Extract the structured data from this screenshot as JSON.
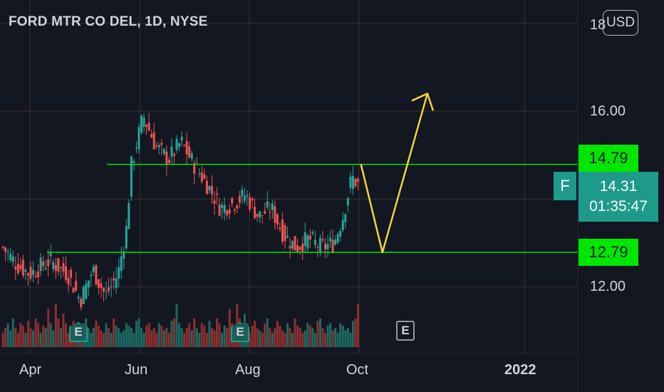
{
  "header": {
    "symbol_title": "FORD MTR CO DEL, 1D, NYSE",
    "currency": "USD"
  },
  "price_axis": {
    "ticks": [
      {
        "label": "18",
        "value": 18.0
      },
      {
        "label": "16.00",
        "value": 16.0
      },
      {
        "label": "12.00",
        "value": 12.0
      }
    ]
  },
  "time_axis": {
    "ticks": [
      {
        "label": "Apr",
        "date": "2021-04-01"
      },
      {
        "label": "Jun",
        "date": "2021-06-01"
      },
      {
        "label": "Aug",
        "date": "2021-08-01"
      },
      {
        "label": "Oct",
        "date": "2021-10-01"
      },
      {
        "label": "2022",
        "date": "2022-01-01"
      }
    ]
  },
  "price_tags": {
    "resistance": "14.79",
    "support": "12.79"
  },
  "last_price": {
    "ticker": "F",
    "price": "14.31",
    "countdown": "01:35:47"
  },
  "events": {
    "earnings_label": "E",
    "upcoming_label": "E"
  },
  "colors": {
    "up": "#26a69a",
    "down": "#ef5350",
    "level": "#00e600",
    "projection": "#f2d23c",
    "grid": "#3b2f2a",
    "background": "#131722"
  },
  "chart_data": {
    "type": "candlestick",
    "title": "FORD MTR CO DEL, 1D, NYSE",
    "ylim": [
      11.5,
      18.3
    ],
    "price_scale": "linear",
    "grid": true,
    "horizontal_levels": [
      14.79,
      12.79
    ],
    "last_price": 14.31,
    "close_path": [
      {
        "date": "2021-03-17",
        "close": 12.9
      },
      {
        "date": "2021-03-25",
        "close": 12.5
      },
      {
        "date": "2021-04-01",
        "close": 12.3
      },
      {
        "date": "2021-04-12",
        "close": 12.6
      },
      {
        "date": "2021-04-22",
        "close": 12.3
      },
      {
        "date": "2021-04-29",
        "close": 11.7
      },
      {
        "date": "2021-05-06",
        "close": 12.4
      },
      {
        "date": "2021-05-13",
        "close": 11.8
      },
      {
        "date": "2021-05-20",
        "close": 12.3
      },
      {
        "date": "2021-05-25",
        "close": 13.4
      },
      {
        "date": "2021-05-27",
        "close": 14.7
      },
      {
        "date": "2021-06-03",
        "close": 15.9
      },
      {
        "date": "2021-06-10",
        "close": 15.2
      },
      {
        "date": "2021-06-17",
        "close": 14.9
      },
      {
        "date": "2021-06-24",
        "close": 15.3
      },
      {
        "date": "2021-07-01",
        "close": 14.8
      },
      {
        "date": "2021-07-09",
        "close": 14.3
      },
      {
        "date": "2021-07-16",
        "close": 13.8
      },
      {
        "date": "2021-07-23",
        "close": 13.9
      },
      {
        "date": "2021-07-30",
        "close": 14.1
      },
      {
        "date": "2021-08-06",
        "close": 13.6
      },
      {
        "date": "2021-08-13",
        "close": 13.8
      },
      {
        "date": "2021-08-20",
        "close": 13.2
      },
      {
        "date": "2021-08-27",
        "close": 12.9
      },
      {
        "date": "2021-09-03",
        "close": 13.1
      },
      {
        "date": "2021-09-10",
        "close": 12.9
      },
      {
        "date": "2021-09-17",
        "close": 13.0
      },
      {
        "date": "2021-09-22",
        "close": 13.6
      },
      {
        "date": "2021-09-27",
        "close": 14.5
      },
      {
        "date": "2021-10-01",
        "close": 14.31
      }
    ],
    "volume_relative": [
      0.3,
      0.4,
      0.5,
      0.35,
      0.6,
      0.4,
      0.3,
      0.5,
      0.45,
      0.3,
      0.55,
      0.4,
      0.35,
      0.6,
      0.5,
      0.3,
      0.45,
      0.4,
      0.8,
      0.5,
      0.35,
      0.9,
      0.6,
      0.4,
      0.7,
      0.5,
      0.3,
      0.45,
      0.55,
      0.4,
      0.35,
      0.3,
      0.5,
      0.6,
      0.4,
      0.3,
      0.4,
      0.55,
      0.45,
      0.35,
      0.3,
      0.5,
      0.4,
      0.3,
      0.6,
      0.45,
      0.4,
      0.3,
      0.35,
      0.5,
      0.45,
      0.4,
      0.3,
      0.55,
      0.6,
      0.4,
      0.3,
      0.45,
      0.5,
      0.35,
      0.4,
      0.3,
      0.5,
      0.45,
      0.35,
      0.4,
      0.3,
      0.55,
      0.6,
      0.9,
      0.5,
      0.4
    ],
    "projection": [
      {
        "date": "2021-10-02",
        "price": 14.8
      },
      {
        "date": "2021-10-14",
        "price": 12.79
      },
      {
        "date": "2021-11-08",
        "price": 16.4
      }
    ]
  }
}
